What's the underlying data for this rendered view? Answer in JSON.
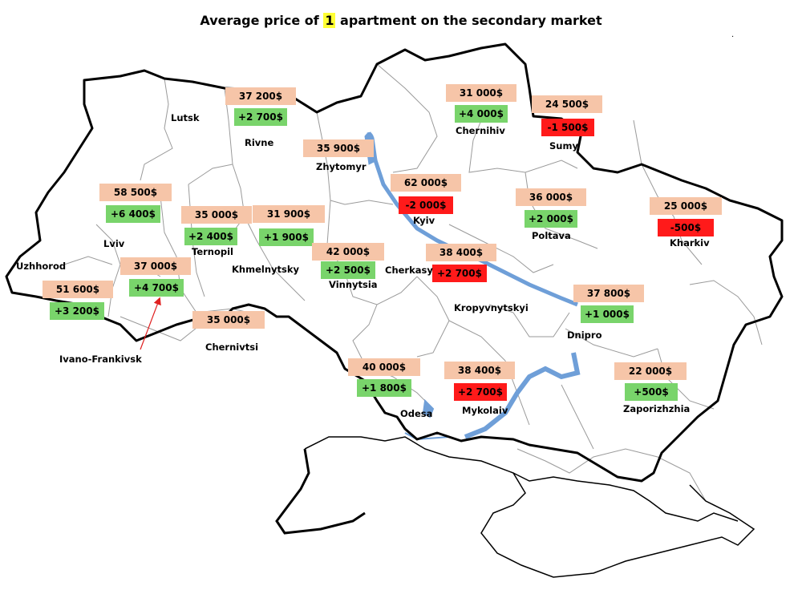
{
  "title": {
    "before": "Average price of ",
    "highlight": "1",
    "after": " apartment on the secondary market"
  },
  "colors": {
    "price_bg": "#f6c5a8",
    "increase_bg": "#79d46b",
    "decrease_bg": "#ff1a1a",
    "title_highlight": "#ffff33",
    "water": "#6f9fd8"
  },
  "cities": {
    "lutsk": {
      "name": "Lutsk"
    },
    "rivne": {
      "name": "Rivne",
      "price": "37 200$",
      "change": "+2 700$"
    },
    "zhytomyr": {
      "name": "Zhytomyr",
      "price": "35 900$"
    },
    "chernihiv": {
      "name": "Chernihiv",
      "price": "31 000$",
      "change": "+4 000$"
    },
    "sumy": {
      "name": "Sumy",
      "price": "24 500$",
      "change": "-1 500$"
    },
    "kyiv": {
      "name": "Kyiv",
      "price": "62 000$",
      "change": "-2 000$"
    },
    "poltava": {
      "name": "Poltava",
      "price": "36 000$",
      "change": "+2 000$"
    },
    "kharkiv": {
      "name": "Kharkiv",
      "price": "25 000$",
      "change": "-500$"
    },
    "lviv": {
      "name": "Lviv",
      "price": "58 500$",
      "change": "+6 400$"
    },
    "ternopil": {
      "name": "Ternopil",
      "price": "35 000$",
      "change": "+2 400$"
    },
    "khmelnytsky": {
      "name": "Khmelnytsky",
      "price": "31 900$",
      "change": "+1 900$"
    },
    "vinnytsia": {
      "name": "Vinnytsia",
      "price": "42 000$",
      "change": "+2 500$"
    },
    "cherkasy": {
      "name": "Cherkasy",
      "price": "38 400$",
      "change": "+2 700$"
    },
    "uzhhorod": {
      "name": "Uzhhorod",
      "price": "51 600$",
      "change": "+3 200$"
    },
    "ivano_frankivsk": {
      "name": "Ivano-Frankivsk",
      "price": "37 000$",
      "change": "+4 700$"
    },
    "chernivtsi": {
      "name": "Chernivtsi",
      "price": "35 000$"
    },
    "kropyvnytskyi": {
      "name": "Kropyvnytskyi"
    },
    "dnipro": {
      "name": "Dnipro",
      "price": "37 800$",
      "change": "+1 000$"
    },
    "odesa": {
      "name": "Odesa",
      "price": "40 000$",
      "change": "+1 800$"
    },
    "mykolaiv": {
      "name": "Mykolaiv",
      "price": "38 400$",
      "change": "+2 700$"
    },
    "zaporizhzhia": {
      "name": "Zaporizhzhia",
      "price": "22 000$",
      "change": "+500$"
    }
  },
  "corner_mark": "."
}
